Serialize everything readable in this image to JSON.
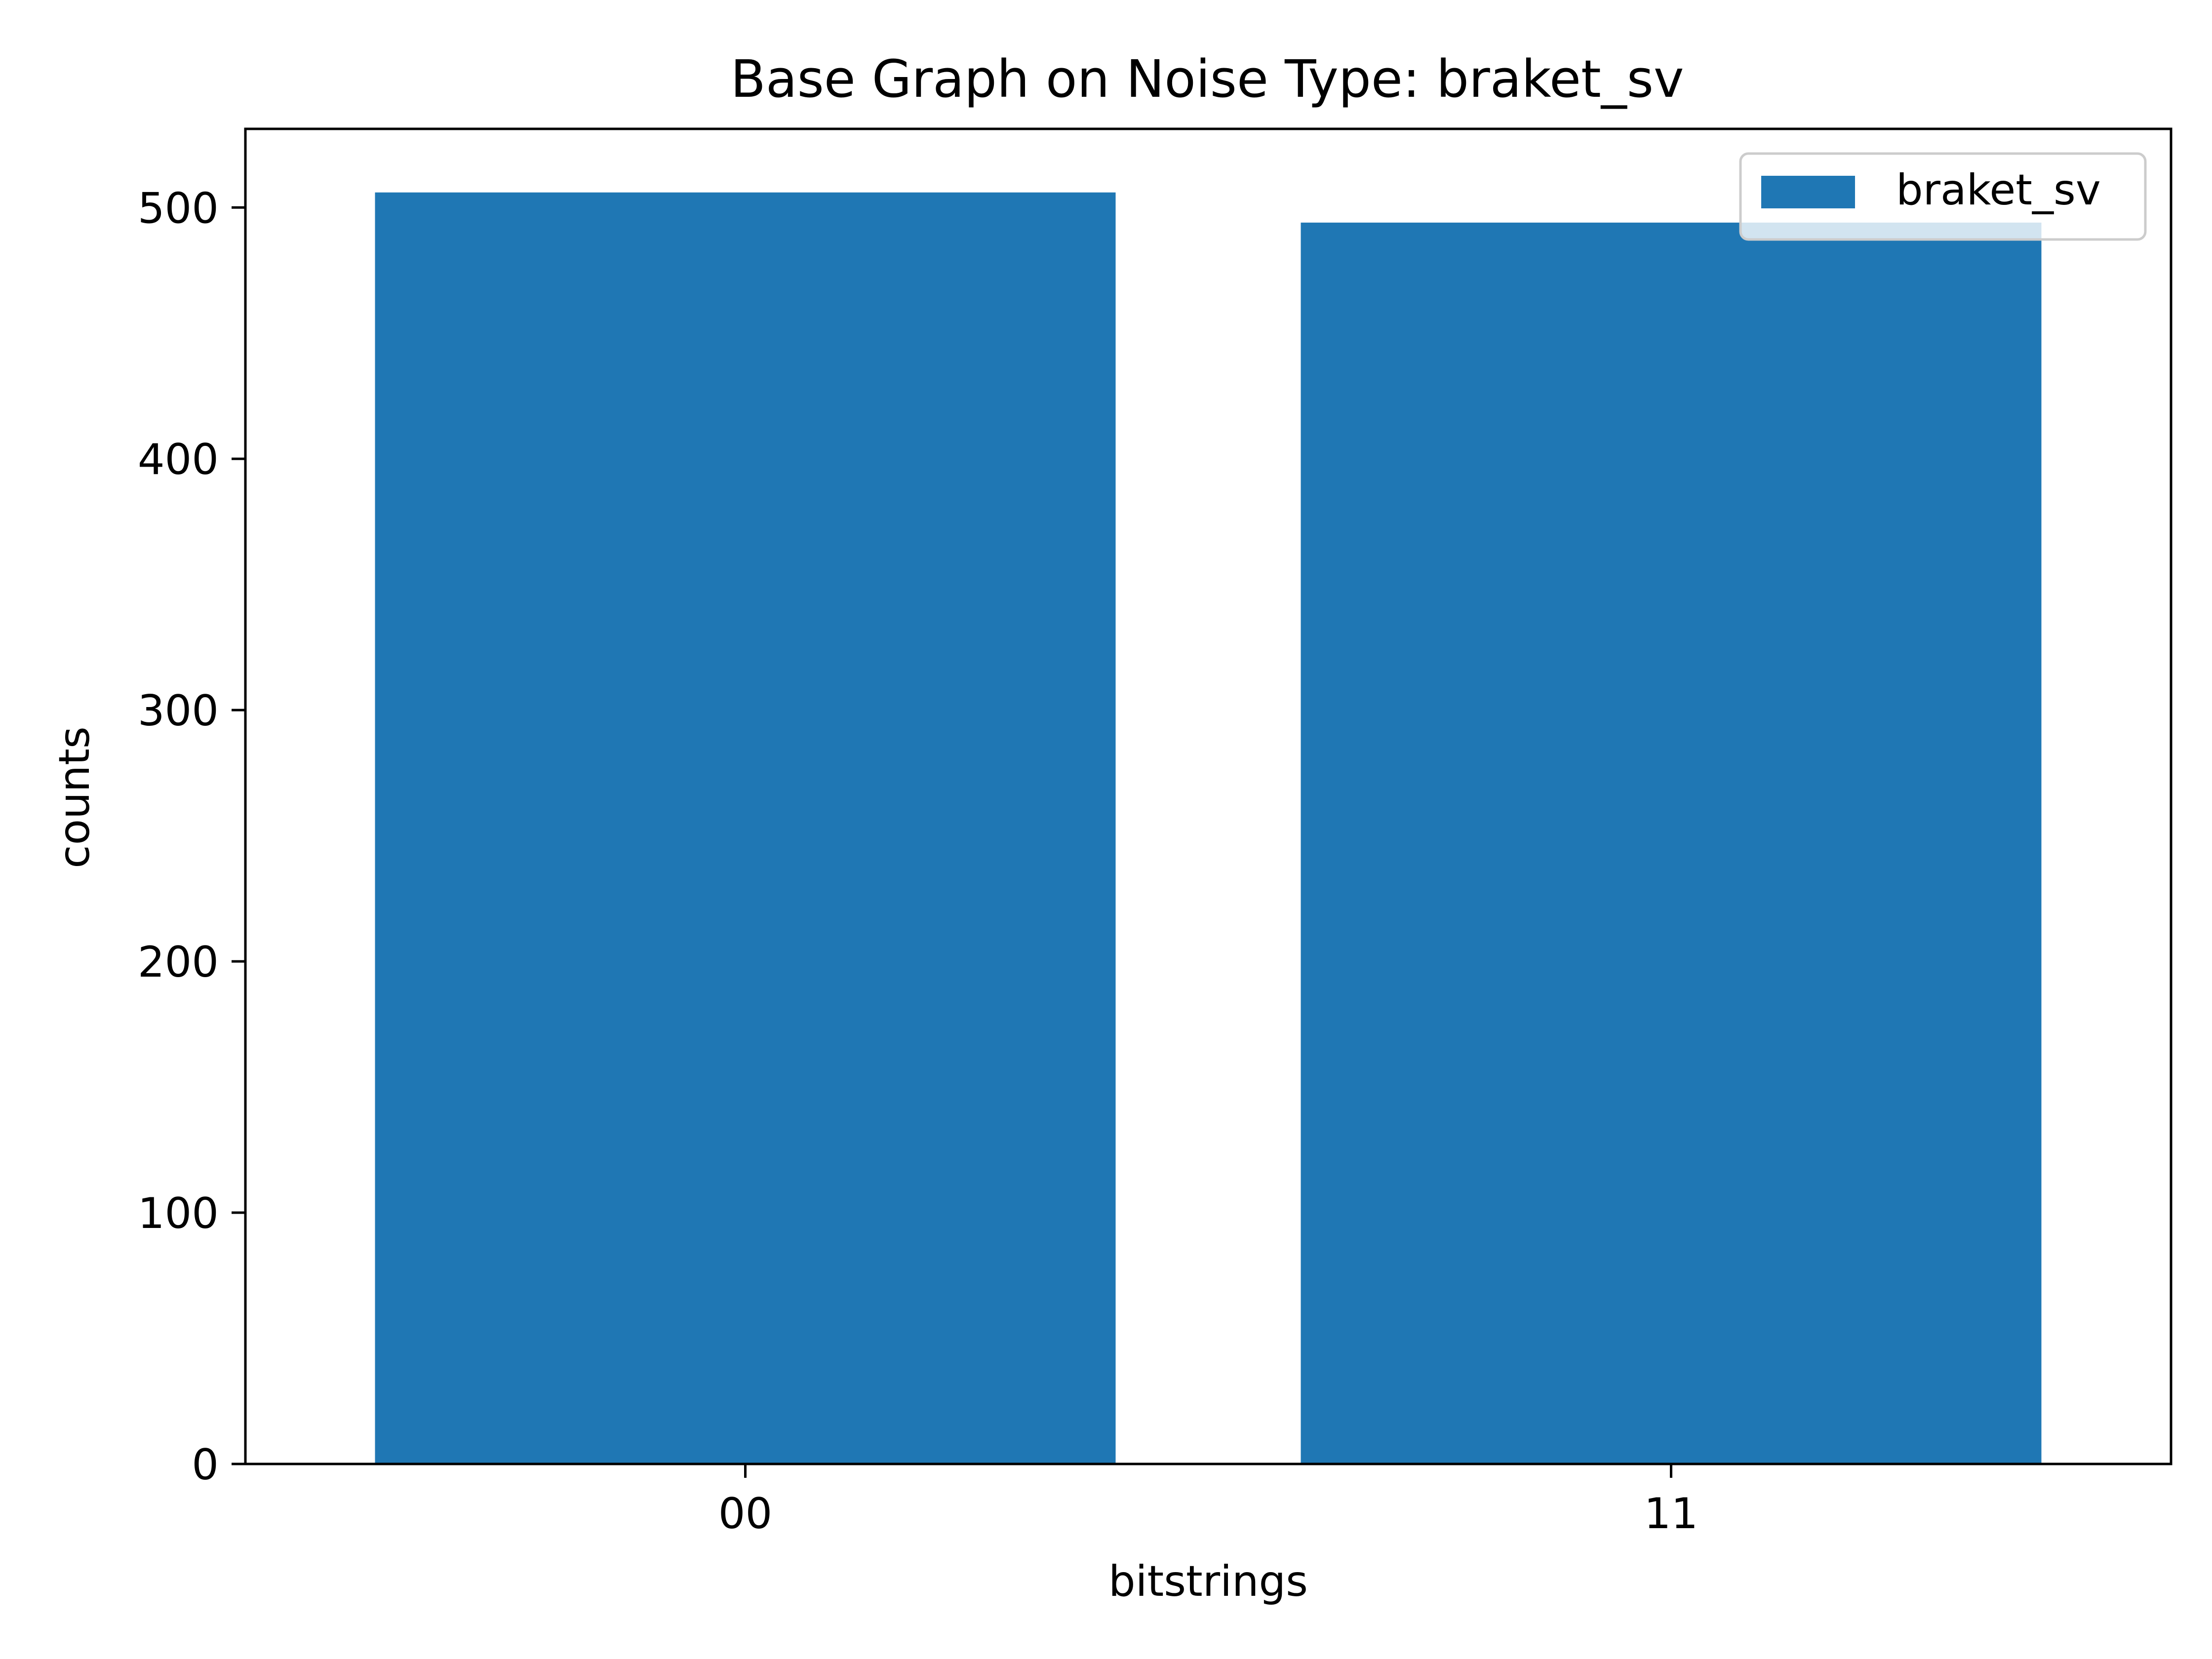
{
  "chart_data": {
    "type": "bar",
    "title": "Base Graph on Noise Type: braket_sv",
    "xlabel": "bitstrings",
    "ylabel": "counts",
    "categories": [
      "00",
      "11"
    ],
    "series": [
      {
        "name": "braket_sv",
        "values": [
          506,
          494
        ],
        "color": "#1f77b4"
      }
    ],
    "ylim": [
      0,
      531.3
    ],
    "yticks": [
      0,
      100,
      200,
      300,
      400,
      500
    ],
    "grid": false,
    "legend": "upper right"
  }
}
